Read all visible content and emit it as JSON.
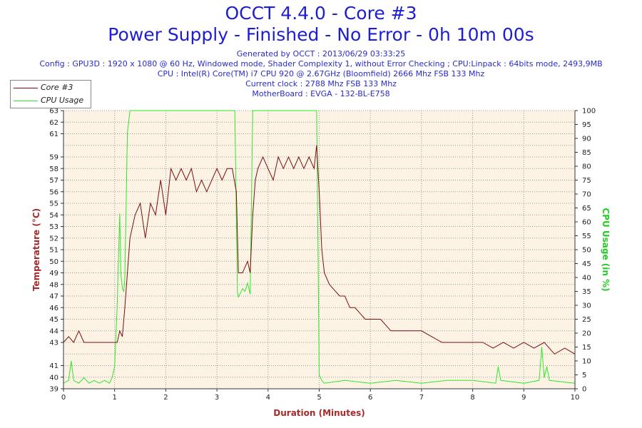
{
  "header": {
    "title": "OCCT 4.4.0 - Core #3",
    "subtitle": "Power Supply - Finished - No Error - 0h 10m 00s",
    "info_lines": [
      "Generated by OCCT : 2013/06/29 03:33:25",
      "Config : GPU3D : 1920 x 1080 @ 60 Hz, Windowed mode, Shader Complexity 1, without Error Checking ; CPU:Linpack : 64bits mode, 2493,9MB",
      "CPU : Intel(R) Core(TM) i7 CPU 920 @ 2.67GHz (Bloomfield) 2666 Mhz FSB 133 Mhz",
      "Current clock : 2788 Mhz FSB 133 Mhz",
      "MotherBoard : EVGA - 132-BL-E758"
    ]
  },
  "colors": {
    "temp": "#7a0e0e",
    "cpu": "#2ee62e",
    "plot_bg": "#fdf3e4",
    "title": "#1d1dd6",
    "axis_title": "#a82a2a",
    "cpu_axis_title": "#22cc22"
  },
  "chart_data": {
    "type": "line",
    "title": "OCCT 4.4.0 - Core #3",
    "xlabel": "Duration (Minutes)",
    "ylabel": "Temperature (°C)",
    "y2label": "CPU Usage (in %)",
    "xlim": [
      0,
      10
    ],
    "ylim": [
      39,
      63
    ],
    "y2lim": [
      0,
      100
    ],
    "grid": true,
    "legend_position": "top-left",
    "x_ticks": [
      0,
      1,
      2,
      3,
      4,
      5,
      6,
      7,
      8,
      9,
      10
    ],
    "y_ticks": [
      39,
      40,
      41,
      42,
      43,
      44,
      45,
      46,
      47,
      48,
      49,
      50,
      51,
      52,
      53,
      54,
      55,
      56,
      57,
      58,
      59,
      60,
      61,
      62,
      63
    ],
    "y_tick_labels": [
      "39",
      "40",
      "41",
      "43",
      "44",
      "45",
      "46",
      "47",
      "48",
      "49",
      "50",
      "51",
      "52",
      "53",
      "54",
      "55",
      "56",
      "57",
      "58",
      "59",
      "61",
      "62",
      "63"
    ],
    "y2_ticks": [
      0,
      5,
      10,
      15,
      20,
      25,
      30,
      35,
      40,
      45,
      50,
      55,
      60,
      65,
      70,
      75,
      80,
      85,
      90,
      95,
      100
    ],
    "series": [
      {
        "name": "Core #3",
        "axis": "left",
        "x": [
          0,
          0.1,
          0.2,
          0.3,
          0.4,
          0.5,
          0.6,
          0.7,
          0.8,
          0.9,
          1.0,
          1.05,
          1.1,
          1.15,
          1.2,
          1.25,
          1.3,
          1.35,
          1.4,
          1.5,
          1.6,
          1.7,
          1.8,
          1.9,
          2.0,
          2.1,
          2.2,
          2.3,
          2.4,
          2.5,
          2.6,
          2.7,
          2.8,
          2.9,
          3.0,
          3.1,
          3.2,
          3.3,
          3.38,
          3.42,
          3.5,
          3.6,
          3.65,
          3.7,
          3.75,
          3.8,
          3.9,
          4.0,
          4.1,
          4.2,
          4.3,
          4.4,
          4.5,
          4.6,
          4.7,
          4.8,
          4.9,
          4.95,
          5.0,
          5.05,
          5.1,
          5.2,
          5.3,
          5.4,
          5.5,
          5.6,
          5.7,
          5.8,
          5.9,
          6.0,
          6.2,
          6.4,
          6.6,
          6.8,
          7.0,
          7.2,
          7.4,
          7.6,
          7.8,
          8.0,
          8.2,
          8.4,
          8.6,
          8.8,
          9.0,
          9.2,
          9.4,
          9.6,
          9.8,
          10.0
        ],
        "values": [
          43,
          43.5,
          43,
          44,
          43,
          43,
          43,
          43,
          43,
          43,
          43,
          43,
          44,
          43.5,
          46,
          49,
          52,
          53,
          54,
          55,
          52,
          55,
          54,
          57,
          54,
          58,
          57,
          58,
          57,
          58,
          56,
          57,
          56,
          57,
          58,
          57,
          58,
          58,
          56,
          49,
          49,
          50,
          49,
          54,
          57,
          58,
          59,
          58,
          57,
          59,
          58,
          59,
          58,
          59,
          58,
          59,
          58,
          60,
          56,
          51,
          49,
          48,
          47.5,
          47,
          47,
          46,
          46,
          45.5,
          45,
          45,
          45,
          44,
          44,
          44,
          44,
          43.5,
          43,
          43,
          43,
          43,
          43,
          42.5,
          43,
          42.5,
          43,
          42.5,
          43,
          42,
          42.5,
          42
        ]
      },
      {
        "name": "CPU Usage",
        "axis": "right",
        "x": [
          0,
          0.1,
          0.15,
          0.2,
          0.3,
          0.4,
          0.5,
          0.6,
          0.7,
          0.8,
          0.9,
          0.95,
          1.0,
          1.05,
          1.08,
          1.1,
          1.12,
          1.15,
          1.18,
          1.2,
          1.25,
          1.3,
          1.35,
          1.5,
          2.0,
          2.5,
          3.0,
          3.35,
          3.4,
          3.42,
          3.45,
          3.5,
          3.55,
          3.6,
          3.65,
          3.7,
          3.75,
          4.0,
          4.5,
          4.95,
          5.0,
          5.05,
          5.1,
          5.5,
          6.0,
          6.5,
          7.0,
          7.5,
          8.0,
          8.45,
          8.5,
          8.55,
          9.0,
          9.3,
          9.35,
          9.4,
          9.45,
          9.5,
          10.0
        ],
        "values": [
          2,
          3,
          10,
          3,
          2,
          4,
          2,
          3,
          2,
          3,
          2,
          4,
          8,
          30,
          50,
          63,
          42,
          36,
          35,
          40,
          92,
          100,
          100,
          100,
          100,
          100,
          100,
          100,
          35,
          33,
          34,
          36,
          35,
          38,
          34,
          100,
          100,
          100,
          100,
          100,
          5,
          3,
          2,
          3,
          2,
          3,
          2,
          3,
          3,
          2,
          8,
          3,
          2,
          3,
          15,
          4,
          8,
          3,
          2
        ]
      }
    ]
  }
}
